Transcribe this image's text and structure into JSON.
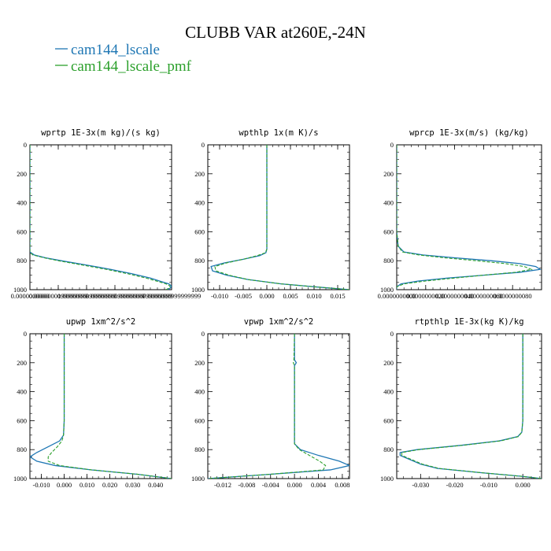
{
  "title": "CLUBB VAR at260E,-24N",
  "legend": [
    {
      "label": "cam144_lscale",
      "color": "#1f77b4",
      "dash": "solid"
    },
    {
      "label": "cam144_lscale_pmf",
      "color": "#2ca02c",
      "dash": "dashed"
    }
  ],
  "chart_data": [
    {
      "type": "line",
      "title": "wprtp  1E-3x(m kg)/(s kg)",
      "xlim": [
        0.0,
        1e-07
      ],
      "ylim": [
        1000,
        0
      ],
      "xticks": [
        0.0,
        2e-08,
        4e-08,
        6e-08,
        8e-08,
        1e-07
      ],
      "xtick_labels": [
        "0.0000000000",
        "0.0000000199999999",
        "0.0000000399999999",
        "0.0000000599999999",
        "0.0000000799999999",
        "0.0000000999999999"
      ],
      "yticks": [
        0,
        200,
        400,
        600,
        800,
        1000
      ],
      "ytick_labels": [
        "0",
        "200",
        "400",
        "600",
        "800",
        "1000"
      ],
      "series": [
        {
          "name": "cam144_lscale",
          "y": [
            0,
            150,
            300,
            450,
            600,
            700,
            740,
            760,
            780,
            800,
            830,
            860,
            890,
            920,
            945,
            960,
            975,
            990,
            1000
          ],
          "x": [
            0,
            0,
            0,
            0,
            0,
            0,
            0,
            3e-09,
            1.1e-08,
            2.2e-08,
            4e-08,
            5.7e-08,
            7.2e-08,
            8.5e-08,
            9.3e-08,
            9.8e-08,
            1e-07,
            9.9e-08,
            9.7e-08
          ]
        },
        {
          "name": "cam144_lscale_pmf",
          "y": [
            0,
            150,
            300,
            450,
            600,
            700,
            740,
            760,
            780,
            800,
            830,
            860,
            890,
            920,
            945,
            960,
            975,
            990,
            1000
          ],
          "x": [
            0,
            0,
            0,
            0,
            0,
            0,
            0,
            2e-09,
            1e-08,
            2e-08,
            3.7e-08,
            5.4e-08,
            6.9e-08,
            8.2e-08,
            9.1e-08,
            9.6e-08,
            9.9e-08,
            9.8e-08,
            9.6e-08
          ]
        }
      ]
    },
    {
      "type": "line",
      "title": "wpthlp  1x(m K)/s",
      "xlim": [
        -0.0125,
        0.0175
      ],
      "ylim": [
        1000,
        0
      ],
      "xticks": [
        -0.01,
        -0.005,
        0.0,
        0.005,
        0.01,
        0.015
      ],
      "xtick_labels": [
        "-0.010",
        "-0.005",
        "0.000",
        "0.005",
        "0.010",
        "0.015"
      ],
      "yticks": [
        0,
        200,
        400,
        600,
        800,
        1000
      ],
      "ytick_labels": [
        "0",
        "200",
        "400",
        "600",
        "800",
        "1000"
      ],
      "series": [
        {
          "name": "cam144_lscale",
          "y": [
            0,
            200,
            400,
            600,
            720,
            745,
            765,
            790,
            815,
            840,
            870,
            900,
            930,
            960,
            980,
            1000
          ],
          "x": [
            0,
            0,
            0,
            0,
            0,
            -0.0002,
            -0.0015,
            -0.005,
            -0.009,
            -0.0118,
            -0.0115,
            -0.0085,
            -0.004,
            0.003,
            0.01,
            0.0175
          ]
        },
        {
          "name": "cam144_lscale_pmf",
          "y": [
            0,
            200,
            400,
            600,
            720,
            745,
            765,
            790,
            815,
            840,
            870,
            900,
            930,
            960,
            980,
            1000
          ],
          "x": [
            0,
            0,
            0,
            0,
            0,
            -0.0003,
            -0.002,
            -0.005,
            -0.0085,
            -0.011,
            -0.0108,
            -0.008,
            -0.004,
            0.003,
            0.01,
            0.0175
          ]
        }
      ]
    },
    {
      "type": "line",
      "title": "wprcp  1E-3x(m/s) (kg/kg)",
      "xlim": [
        0.0,
        1e-08
      ],
      "ylim": [
        1000,
        0
      ],
      "xticks": [
        0.0,
        2e-09,
        4e-09,
        6e-09,
        8e-09
      ],
      "xtick_labels": [
        "0.0000000000",
        "0.0000000020",
        "0.0000000040",
        "0.0000000060",
        "0.0000000080"
      ],
      "yticks": [
        0,
        200,
        400,
        600,
        800,
        1000
      ],
      "ytick_labels": [
        "0",
        "200",
        "400",
        "600",
        "800",
        "1000"
      ],
      "series": [
        {
          "name": "cam144_lscale",
          "y": [
            0,
            200,
            400,
            600,
            700,
            740,
            760,
            780,
            800,
            820,
            840,
            860,
            880,
            900,
            920,
            940,
            960,
            980,
            1000
          ],
          "x": [
            0,
            0,
            0,
            0,
            1e-10,
            5e-10,
            1.8e-09,
            4e-09,
            6.5e-09,
            8.5e-09,
            9.6e-09,
            9.9e-09,
            8.5e-09,
            6e-09,
            3.5e-09,
            1.5e-09,
            3e-10,
            0,
            0
          ]
        },
        {
          "name": "cam144_lscale_pmf",
          "y": [
            0,
            200,
            400,
            600,
            700,
            740,
            760,
            780,
            800,
            820,
            840,
            860,
            880,
            900,
            920,
            940,
            960,
            980,
            1000
          ],
          "x": [
            0,
            0,
            0,
            0,
            1e-10,
            4e-10,
            1.5e-09,
            3.3e-09,
            5.5e-09,
            7.5e-09,
            8.8e-09,
            9.3e-09,
            8.2e-09,
            6e-09,
            4e-09,
            2e-09,
            5e-10,
            0,
            0
          ]
        }
      ]
    },
    {
      "type": "line",
      "title": "upwp  1xm^2/s^2",
      "xlim": [
        -0.015,
        0.047
      ],
      "ylim": [
        1000,
        0
      ],
      "xticks": [
        -0.01,
        0.0,
        0.01,
        0.02,
        0.03,
        0.04
      ],
      "xtick_labels": [
        "-0.010",
        "0.000",
        "0.010",
        "0.020",
        "0.030",
        "0.040"
      ],
      "yticks": [
        0,
        200,
        400,
        600,
        800,
        1000
      ],
      "ytick_labels": [
        "0",
        "200",
        "400",
        "600",
        "800",
        "1000"
      ],
      "series": [
        {
          "name": "cam144_lscale",
          "y": [
            0,
            200,
            400,
            600,
            700,
            740,
            780,
            820,
            850,
            880,
            910,
            940,
            970,
            1000
          ],
          "x": [
            0,
            0,
            0,
            0,
            -0.0003,
            -0.002,
            -0.007,
            -0.012,
            -0.015,
            -0.012,
            -0.004,
            0.012,
            0.032,
            0.047
          ]
        },
        {
          "name": "cam144_lscale_pmf",
          "y": [
            0,
            200,
            400,
            600,
            700,
            740,
            780,
            820,
            850,
            880,
            910,
            940,
            970,
            1000
          ],
          "x": [
            0,
            0,
            0,
            0,
            -0.0003,
            -0.001,
            -0.003,
            -0.0055,
            -0.007,
            -0.007,
            -0.002,
            0.012,
            0.032,
            0.047
          ]
        }
      ]
    },
    {
      "type": "line",
      "title": "vpwp  1xm^2/s^2",
      "xlim": [
        -0.0145,
        0.0092
      ],
      "ylim": [
        1000,
        0
      ],
      "xticks": [
        -0.012,
        -0.008,
        -0.004,
        0.0,
        0.004,
        0.008
      ],
      "xtick_labels": [
        "-0.012",
        "-0.008",
        "-0.004",
        "0.000",
        "0.004",
        "0.008"
      ],
      "yticks": [
        0,
        200,
        400,
        600,
        800,
        1000
      ],
      "ytick_labels": [
        "0",
        "200",
        "400",
        "600",
        "800",
        "1000"
      ],
      "series": [
        {
          "name": "cam144_lscale",
          "y": [
            0,
            180,
            200,
            220,
            260,
            400,
            600,
            760,
            800,
            840,
            880,
            910,
            940,
            970,
            1000
          ],
          "x": [
            0,
            0,
            0.0003,
            0,
            0,
            0,
            0,
            0,
            0.001,
            0.004,
            0.0075,
            0.0092,
            0.006,
            -0.004,
            -0.0145
          ]
        },
        {
          "name": "cam144_lscale_pmf",
          "y": [
            0,
            180,
            200,
            220,
            260,
            400,
            600,
            760,
            800,
            840,
            880,
            910,
            940,
            970,
            1000
          ],
          "x": [
            0,
            -0.0001,
            -0.0002,
            0,
            0,
            0,
            0,
            0,
            0.0008,
            0.0025,
            0.0042,
            0.0052,
            0.0048,
            -0.004,
            -0.0145
          ]
        }
      ]
    },
    {
      "type": "line",
      "title": "rtpthlp  1E-3x(kg K)/kg",
      "xlim": [
        -0.037,
        0.0055
      ],
      "ylim": [
        1000,
        0
      ],
      "xticks": [
        -0.03,
        -0.02,
        -0.01,
        0.0
      ],
      "xtick_labels": [
        "-0.030",
        "-0.020",
        "-0.010",
        "0.000"
      ],
      "yticks": [
        0,
        200,
        400,
        600,
        800,
        1000
      ],
      "ytick_labels": [
        "0",
        "200",
        "400",
        "600",
        "800",
        "1000"
      ],
      "series": [
        {
          "name": "cam144_lscale",
          "y": [
            0,
            200,
            400,
            600,
            680,
            710,
            740,
            770,
            800,
            820,
            840,
            860,
            880,
            900,
            930,
            960,
            985,
            1000
          ],
          "x": [
            0,
            0,
            0,
            0,
            -0.0003,
            -0.0015,
            -0.007,
            -0.018,
            -0.031,
            -0.036,
            -0.036,
            -0.034,
            -0.032,
            -0.03,
            -0.025,
            -0.012,
            0,
            0.0055
          ]
        },
        {
          "name": "cam144_lscale_pmf",
          "y": [
            0,
            200,
            400,
            600,
            680,
            710,
            740,
            770,
            800,
            820,
            840,
            860,
            880,
            900,
            930,
            960,
            985,
            1000
          ],
          "x": [
            0,
            0,
            0,
            0,
            -0.0003,
            -0.0013,
            -0.0065,
            -0.0175,
            -0.0305,
            -0.0355,
            -0.0355,
            -0.0335,
            -0.0315,
            -0.0295,
            -0.0245,
            -0.0118,
            0,
            0.0055
          ]
        }
      ]
    }
  ]
}
